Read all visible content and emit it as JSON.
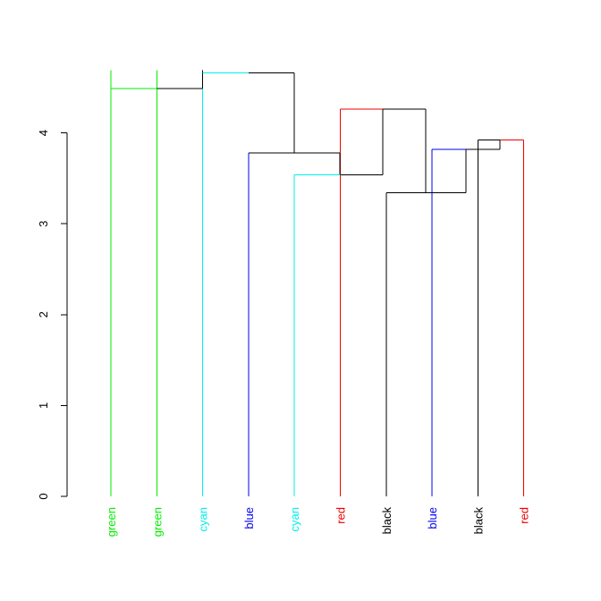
{
  "chart_data": {
    "type": "dendrogram",
    "title": "",
    "xlabel": "",
    "ylabel": "",
    "ylim": [
      0,
      4.7
    ],
    "y_ticks": [
      0,
      1,
      2,
      3,
      4
    ],
    "y_tick_labels": [
      "0",
      "1",
      "2",
      "3",
      "4"
    ],
    "grid": false,
    "leaves": [
      {
        "label": "green",
        "color": "#00ee00"
      },
      {
        "label": "green",
        "color": "#00ee00"
      },
      {
        "label": "cyan",
        "color": "#00eeee"
      },
      {
        "label": "blue",
        "color": "#0000ee"
      },
      {
        "label": "cyan",
        "color": "#00eeee"
      },
      {
        "label": "red",
        "color": "#ee0000"
      },
      {
        "label": "black",
        "color": "#000000"
      },
      {
        "label": "blue",
        "color": "#0000ee"
      },
      {
        "label": "black",
        "color": "#000000"
      },
      {
        "label": "red",
        "color": "#ee0000"
      }
    ],
    "merges": [
      {
        "id": "n1",
        "children": [
          "L6",
          "L7"
        ],
        "height": 3.34,
        "color": "#000000"
      },
      {
        "id": "n2",
        "children": [
          "L8",
          "L9"
        ],
        "height": 3.92,
        "color": "#000000"
      },
      {
        "id": "n3",
        "children": [
          "L7",
          "n2"
        ],
        "height": 3.82,
        "color": "#000000"
      },
      {
        "id": "n4",
        "children": [
          "n1",
          "n3"
        ],
        "height": 3.34,
        "color": "#000000"
      },
      {
        "id": "n5",
        "children": [
          "L5",
          "n6"
        ],
        "height": 3.54,
        "color": "#000000"
      },
      {
        "id": "n6",
        "children": [
          "L6",
          "n4"
        ],
        "height": 4.26,
        "color": "#000000"
      },
      {
        "id": "n7",
        "children": [
          "L3",
          "n5"
        ],
        "height": 3.78,
        "color": "#000000"
      },
      {
        "id": "n8",
        "children": [
          "L2",
          "n7"
        ],
        "height": 4.66,
        "color": "#000000"
      },
      {
        "id": "n9",
        "children": [
          "L1",
          "n8"
        ],
        "height": 4.49,
        "color": "#000000"
      },
      {
        "id": "n10",
        "children": [
          "L0",
          "n9"
        ],
        "height": 4.49,
        "color": "#00ee00"
      }
    ]
  }
}
